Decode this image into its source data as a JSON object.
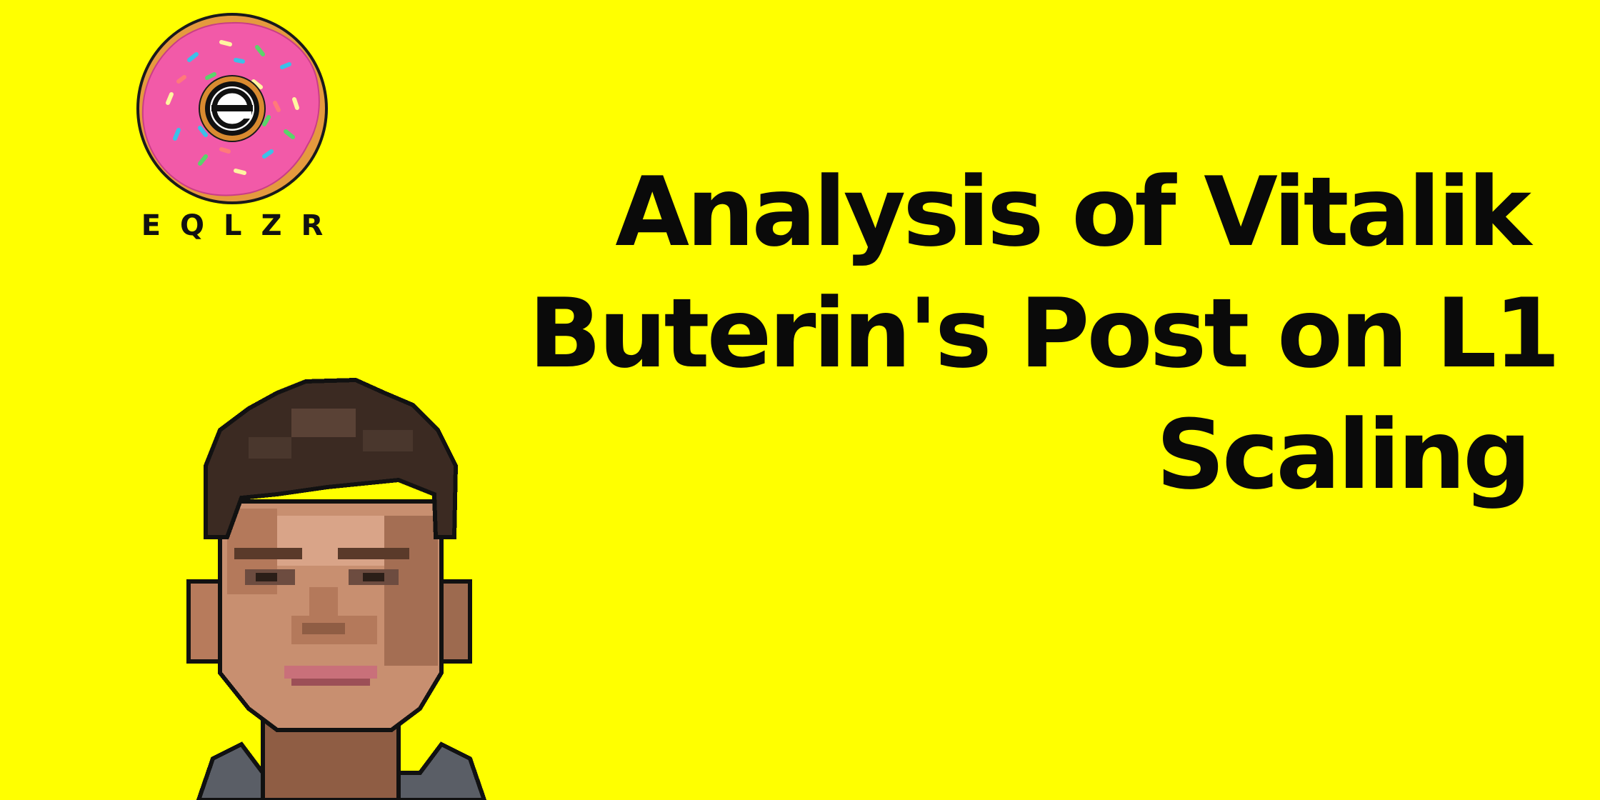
{
  "brand": {
    "name": "EQLZR",
    "letters": [
      "E",
      "Q",
      "L",
      "Z",
      "R"
    ]
  },
  "headline": {
    "lines": [
      "Analysis of Vitalik",
      "Buterin's Post on L1",
      "Scaling"
    ]
  },
  "colors": {
    "background": "#ffff00",
    "text": "#0a0a0a",
    "donut_icing": "#f25aa8",
    "donut_dough": "#e59a3e"
  },
  "icons": {
    "logo": "donut-logo-icon",
    "emblem": "circled-e-emblem-icon",
    "portrait": "pixel-art-portrait"
  }
}
